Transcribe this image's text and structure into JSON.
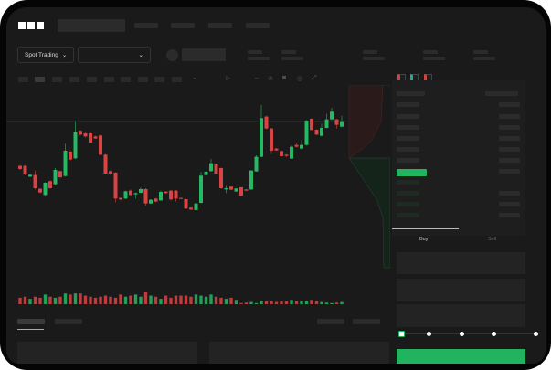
{
  "header": {
    "logo": "OKX"
  },
  "toolbar": {
    "market_select": "Spot Trading",
    "chevron": "⌄"
  },
  "trade": {
    "buy_tab": "Buy",
    "sell_tab": "Sell",
    "leverage_steps": 5
  },
  "colors": {
    "up": "#26b862",
    "down": "#d84444",
    "accent": "#22b35e"
  },
  "chart_data": {
    "type": "candlestick",
    "ylim": [
      2.5,
      100
    ],
    "grid": false,
    "candles": [
      [
        46.3,
        43.8,
        47,
        43
      ],
      [
        46.3,
        39.3,
        47,
        38.5
      ],
      [
        37.5,
        39,
        39.5,
        37
      ],
      [
        38.8,
        28,
        42.5,
        27
      ],
      [
        27.5,
        24.5,
        28,
        24
      ],
      [
        22.5,
        32.5,
        33,
        21.5
      ],
      [
        33.8,
        28,
        34.5,
        27.5
      ],
      [
        31.3,
        43,
        44.5,
        30.5
      ],
      [
        42,
        37,
        42.5,
        36
      ],
      [
        38,
        58.8,
        64.5,
        37.5
      ],
      [
        58,
        51.5,
        59,
        51
      ],
      [
        52.5,
        73.8,
        83,
        52
      ],
      [
        75,
        72,
        76,
        71.5
      ],
      [
        73,
        70.5,
        74,
        69.5
      ],
      [
        73,
        65.5,
        74,
        65
      ],
      [
        70.5,
        68.8,
        71,
        68.5
      ],
      [
        71.3,
        55.5,
        72,
        55
      ],
      [
        55.5,
        40,
        56,
        39.5
      ],
      [
        42,
        40,
        42.5,
        38.5
      ],
      [
        40.8,
        19.5,
        41,
        16.5
      ],
      [
        20,
        18.8,
        20.5,
        18
      ],
      [
        19.5,
        25.5,
        26,
        19
      ],
      [
        26,
        22.5,
        27,
        21.5
      ],
      [
        23,
        24,
        24.5,
        19.5
      ],
      [
        24.3,
        27.3,
        28.5,
        24
      ],
      [
        27.3,
        15.5,
        28,
        13.5
      ],
      [
        15.5,
        18.5,
        19,
        15
      ],
      [
        19.5,
        17,
        20,
        16.5
      ],
      [
        18,
        25,
        26,
        17.5
      ],
      [
        25.3,
        24,
        25.5,
        23.5
      ],
      [
        26,
        18.8,
        26.5,
        18
      ],
      [
        26,
        19.5,
        26.5,
        17
      ],
      [
        20,
        19.3,
        20.3,
        19
      ],
      [
        19,
        11.3,
        19.5,
        11
      ],
      [
        12,
        10.5,
        12.5,
        10
      ],
      [
        10,
        15.5,
        16,
        9.5
      ],
      [
        16,
        38.3,
        41.3,
        15.5
      ],
      [
        38.8,
        41.5,
        42,
        38.5
      ],
      [
        42,
        48.5,
        52,
        41.5
      ],
      [
        47.5,
        40,
        48,
        39.5
      ],
      [
        44.5,
        28,
        45,
        27.5
      ],
      [
        27,
        28,
        30,
        24
      ],
      [
        29.3,
        26.8,
        29.5,
        26.5
      ],
      [
        25.3,
        27.8,
        28,
        25
      ],
      [
        28.8,
        21.8,
        29,
        21.5
      ],
      [
        27,
        26,
        27.2,
        25.8
      ],
      [
        27,
        42.5,
        43,
        26.5
      ],
      [
        41.8,
        53.8,
        55,
        41.5
      ],
      [
        53.8,
        85.5,
        96.3,
        53.5
      ],
      [
        86.8,
        77,
        87.5,
        76.5
      ],
      [
        77,
        58.8,
        77.5,
        56
      ],
      [
        60.5,
        59,
        61,
        58.5
      ],
      [
        58.5,
        54.3,
        59,
        54
      ],
      [
        55.5,
        54.5,
        56,
        53.5
      ],
      [
        52.3,
        62,
        63,
        52
      ],
      [
        63.5,
        62,
        65,
        61.5
      ],
      [
        60.5,
        63.5,
        67.5,
        60
      ],
      [
        63.5,
        83.5,
        84,
        63
      ],
      [
        85,
        75.8,
        85.5,
        75.5
      ],
      [
        76,
        72,
        76.5,
        71.5
      ],
      [
        71,
        77.5,
        81,
        70.5
      ],
      [
        77.5,
        84.5,
        89,
        77
      ],
      [
        84.5,
        90.8,
        94,
        84
      ],
      [
        84.5,
        80,
        85,
        77
      ],
      [
        78.5,
        83,
        87.5,
        78
      ]
    ],
    "price_line": 83,
    "volumes": [
      6,
      7,
      5,
      7,
      6,
      9,
      7,
      6,
      7,
      10,
      9,
      10,
      10,
      8,
      7,
      6,
      7,
      8,
      7,
      6,
      9,
      7,
      8,
      9,
      7,
      11,
      8,
      7,
      5,
      8,
      6,
      8,
      8,
      8,
      7,
      9,
      8,
      7,
      9,
      7,
      6,
      5,
      6,
      4,
      1,
      1.5,
      2,
      1,
      3,
      2.5,
      3,
      2,
      2.5,
      3,
      4,
      3,
      2.5,
      3,
      4,
      3,
      2,
      1.5,
      1,
      1.5,
      2
    ]
  }
}
